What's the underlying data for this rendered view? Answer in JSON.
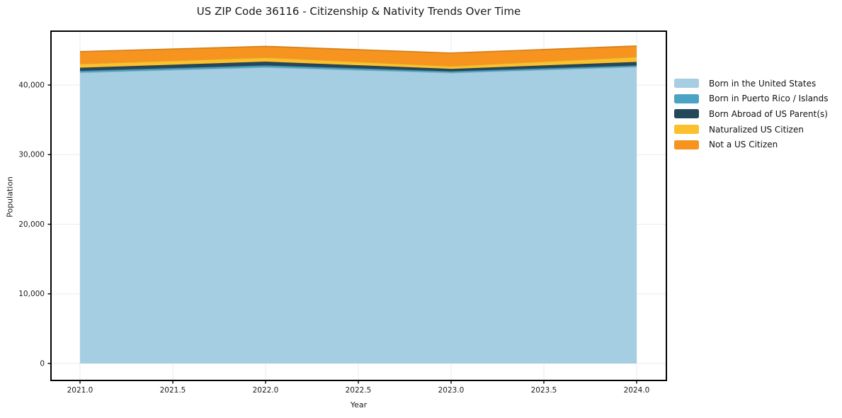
{
  "chart_data": {
    "type": "area",
    "stacked": true,
    "title": "US ZIP Code 36116 - Citizenship & Nativity Trends Over Time",
    "xlabel": "Year",
    "ylabel": "Population",
    "x": [
      2021,
      2022,
      2023,
      2024
    ],
    "series": [
      {
        "name": "Born in the United States",
        "color": "#a6cee3",
        "values": [
          41800,
          42550,
          41760,
          42610
        ]
      },
      {
        "name": "Born in Puerto Rico / Islands",
        "color": "#4aa3c4",
        "values": [
          240,
          270,
          210,
          210
        ]
      },
      {
        "name": "Born Abroad of US Parent(s)",
        "color": "#26475a",
        "values": [
          440,
          540,
          350,
          500
        ]
      },
      {
        "name": "Naturalized US Citizen",
        "color": "#fcc02e",
        "values": [
          580,
          610,
          410,
          740
        ]
      },
      {
        "name": "Not a US Citizen",
        "color": "#f7941f",
        "values": [
          1730,
          1580,
          1860,
          1540
        ]
      }
    ],
    "stacked_totals": [
      44790,
      45550,
      44590,
      45600
    ],
    "xlim": [
      2020.8435,
      2024.1603
    ],
    "ylim": [
      -2443,
      47735
    ],
    "x_ticks": [
      {
        "v": 2021.0,
        "label": "2021.0"
      },
      {
        "v": 2021.5,
        "label": "2021.5"
      },
      {
        "v": 2022.0,
        "label": "2022.0"
      },
      {
        "v": 2022.5,
        "label": "2022.5"
      },
      {
        "v": 2023.0,
        "label": "2023.0"
      },
      {
        "v": 2023.5,
        "label": "2023.5"
      },
      {
        "v": 2024.0,
        "label": "2024.0"
      }
    ],
    "y_ticks": [
      {
        "v": 0,
        "label": "0"
      },
      {
        "v": 10000,
        "label": "10,000"
      },
      {
        "v": 20000,
        "label": "20,000"
      },
      {
        "v": 30000,
        "label": "30,000"
      },
      {
        "v": 40000,
        "label": "40,000"
      }
    ],
    "grid": true,
    "legend_position": "right",
    "colors": {
      "background": "#ffffff",
      "grid": "#ebebeb",
      "spine": "#000000",
      "text": "#1a1a1a"
    }
  }
}
